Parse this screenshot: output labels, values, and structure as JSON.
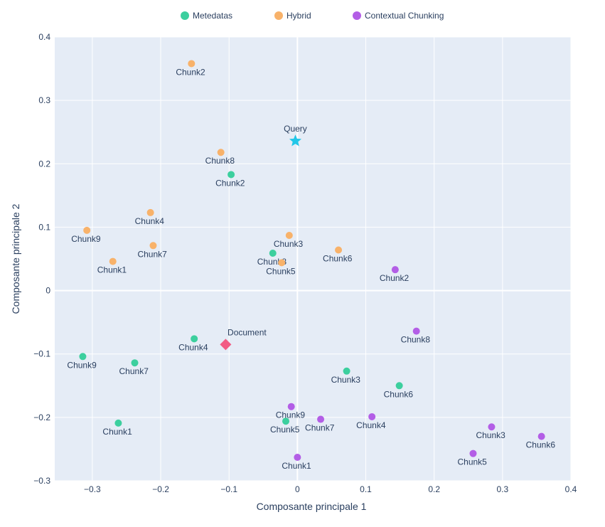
{
  "chart_data": {
    "type": "scatter",
    "xlabel": "Composante principale 1",
    "ylabel": "Composante principale 2",
    "xlim": [
      -0.355,
      0.4
    ],
    "ylim": [
      -0.3,
      0.4
    ],
    "x_ticks": [
      -0.3,
      -0.2,
      -0.1,
      0,
      0.1,
      0.2,
      0.3,
      0.4
    ],
    "x_tick_labels": [
      "−0.3",
      "−0.2",
      "−0.1",
      "0",
      "0.1",
      "0.2",
      "0.3",
      "0.4"
    ],
    "y_ticks": [
      -0.3,
      -0.2,
      -0.1,
      0,
      0.1,
      0.2,
      0.3,
      0.4
    ],
    "y_tick_labels": [
      "−0.3",
      "−0.2",
      "−0.1",
      "0",
      "0.1",
      "0.2",
      "0.3",
      "0.4"
    ],
    "grid": true,
    "legend_position": "top-center",
    "colors": {
      "background": "#e5ecf6",
      "grid": "#ffffff",
      "text": "#2a3f5f",
      "query": "#22c7e8",
      "document": "#f25c84"
    },
    "series": [
      {
        "name": "Metedatas",
        "color": "#3ccf9e",
        "points": [
          {
            "label": "Chunk1",
            "x": -0.262,
            "y": -0.209
          },
          {
            "label": "Chunk2",
            "x": -0.097,
            "y": 0.183
          },
          {
            "label": "Chunk3",
            "x": 0.072,
            "y": -0.127
          },
          {
            "label": "Chunk4",
            "x": -0.151,
            "y": -0.076
          },
          {
            "label": "Chunk5",
            "x": -0.017,
            "y": -0.206
          },
          {
            "label": "Chunk6",
            "x": 0.149,
            "y": -0.15
          },
          {
            "label": "Chunk7",
            "x": -0.238,
            "y": -0.114
          },
          {
            "label": "Chunk8",
            "x": -0.036,
            "y": 0.059
          },
          {
            "label": "Chunk9",
            "x": -0.314,
            "y": -0.104
          }
        ]
      },
      {
        "name": "Hybrid",
        "color": "#f8b26a",
        "points": [
          {
            "label": "Chunk1",
            "x": -0.27,
            "y": 0.046
          },
          {
            "label": "Chunk2",
            "x": -0.155,
            "y": 0.358
          },
          {
            "label": "Chunk3",
            "x": -0.012,
            "y": 0.087
          },
          {
            "label": "Chunk4",
            "x": -0.215,
            "y": 0.123
          },
          {
            "label": "Chunk5",
            "x": -0.023,
            "y": 0.044
          },
          {
            "label": "Chunk6",
            "x": 0.06,
            "y": 0.064
          },
          {
            "label": "Chunk7",
            "x": -0.211,
            "y": 0.071
          },
          {
            "label": "Chunk8",
            "x": -0.112,
            "y": 0.218
          },
          {
            "label": "Chunk9",
            "x": -0.308,
            "y": 0.095
          }
        ]
      },
      {
        "name": "Contextual Chunking",
        "color": "#b35ee6",
        "points": [
          {
            "label": "Chunk1",
            "x": 0.0,
            "y": -0.263
          },
          {
            "label": "Chunk2",
            "x": 0.143,
            "y": 0.033
          },
          {
            "label": "Chunk3",
            "x": 0.284,
            "y": -0.215
          },
          {
            "label": "Chunk4",
            "x": 0.109,
            "y": -0.199
          },
          {
            "label": "Chunk5",
            "x": 0.257,
            "y": -0.257
          },
          {
            "label": "Chunk6",
            "x": 0.357,
            "y": -0.23
          },
          {
            "label": "Chunk7",
            "x": 0.034,
            "y": -0.203
          },
          {
            "label": "Chunk8",
            "x": 0.174,
            "y": -0.064
          },
          {
            "label": "Chunk9",
            "x": -0.009,
            "y": -0.183
          }
        ]
      }
    ],
    "special_points": [
      {
        "label": "Query",
        "x": -0.003,
        "y": 0.236,
        "marker": "star"
      },
      {
        "label": "Document",
        "x": -0.105,
        "y": -0.085,
        "marker": "diamond"
      }
    ]
  }
}
